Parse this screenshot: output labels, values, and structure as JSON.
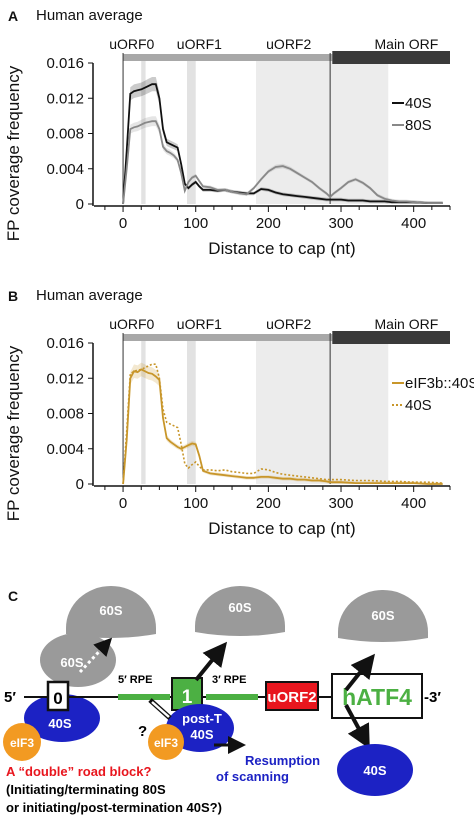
{
  "panel_a": {
    "letter": "A",
    "title": "Human average"
  },
  "panel_b": {
    "letter": "B",
    "title": "Human average"
  },
  "panel_c": {
    "letter": "C"
  },
  "chart_data": [
    {
      "type": "line",
      "title": "Human average",
      "xlabel": "Distance to cap (nt)",
      "ylabel": "FP coverage frequency",
      "xlim": [
        -40,
        450
      ],
      "ylim": [
        0,
        0.016
      ],
      "xticks": [
        "0",
        "100",
        "200",
        "300",
        "400"
      ],
      "xtick_values": [
        0,
        100,
        200,
        300,
        400
      ],
      "yticks": [
        "0",
        "0.004",
        "0.008",
        "0.012",
        "0.016"
      ],
      "ytick_values": [
        0,
        0.004,
        0.008,
        0.012,
        0.016
      ],
      "orf_labels": [
        "uORF0",
        "uORF1",
        "uORF2",
        "Main ORF"
      ],
      "regions": [
        {
          "name": "uORF0",
          "start": 25,
          "end": 31
        },
        {
          "name": "uORF1",
          "start": 88,
          "end": 100
        },
        {
          "name": "uORF2",
          "start": 183,
          "end": 285
        },
        {
          "name": "Main ORF",
          "start": 285,
          "end": 365
        }
      ],
      "orf_bar_start": 0,
      "orf_bar_mid": 288,
      "orf_bar_end": 450,
      "vlines": [
        0,
        285
      ],
      "series": [
        {
          "name": "40S",
          "color": "#111111",
          "style": "solid",
          "x": [
            0,
            5,
            10,
            15,
            20,
            25,
            30,
            35,
            40,
            45,
            50,
            55,
            60,
            65,
            70,
            75,
            80,
            85,
            90,
            95,
            100,
            105,
            110,
            120,
            130,
            140,
            150,
            160,
            170,
            180,
            190,
            200,
            210,
            220,
            230,
            240,
            250,
            260,
            270,
            280,
            285,
            290,
            300,
            310,
            320,
            330,
            340,
            350,
            360,
            370,
            380,
            390,
            400,
            420,
            440
          ],
          "y": [
            0,
            0.006,
            0.0125,
            0.0128,
            0.0129,
            0.013,
            0.0132,
            0.0134,
            0.0136,
            0.0136,
            0.012,
            0.0085,
            0.007,
            0.0068,
            0.0066,
            0.0064,
            0.0045,
            0.0023,
            0.0018,
            0.0022,
            0.0025,
            0.002,
            0.0016,
            0.0016,
            0.0015,
            0.0016,
            0.0014,
            0.0013,
            0.0012,
            0.0012,
            0.0017,
            0.0016,
            0.0013,
            0.0011,
            0.001,
            0.0009,
            0.0008,
            0.0007,
            0.0006,
            0.0005,
            0.0005,
            0.0005,
            0.0005,
            0.0004,
            0.0004,
            0.0004,
            0.0003,
            0.0003,
            0.0003,
            0.0002,
            0.0002,
            0.0002,
            0.0002,
            0.0001,
            0.0001
          ]
        },
        {
          "name": "80S",
          "color": "#888888",
          "style": "solid",
          "x": [
            0,
            5,
            10,
            15,
            20,
            25,
            30,
            35,
            40,
            45,
            50,
            55,
            60,
            65,
            70,
            75,
            80,
            85,
            90,
            95,
            100,
            105,
            110,
            120,
            130,
            140,
            150,
            160,
            170,
            180,
            190,
            200,
            210,
            220,
            230,
            240,
            250,
            260,
            270,
            280,
            285,
            290,
            300,
            310,
            320,
            330,
            340,
            350,
            360,
            370,
            380,
            390,
            400,
            420,
            440
          ],
          "y": [
            0,
            0.004,
            0.0085,
            0.0087,
            0.0088,
            0.009,
            0.0092,
            0.0093,
            0.0094,
            0.0094,
            0.0085,
            0.0065,
            0.006,
            0.0058,
            0.0055,
            0.005,
            0.0035,
            0.0015,
            0.0025,
            0.003,
            0.0032,
            0.0026,
            0.002,
            0.0019,
            0.0016,
            0.0016,
            0.0014,
            0.0012,
            0.0011,
            0.0018,
            0.0028,
            0.0037,
            0.0042,
            0.0043,
            0.004,
            0.0035,
            0.003,
            0.0025,
            0.0018,
            0.0012,
            0.0008,
            0.0012,
            0.0018,
            0.0025,
            0.0028,
            0.0024,
            0.0018,
            0.001,
            0.0006,
            0.0004,
            0.0003,
            0.0003,
            0.0002,
            0.0001,
            0.0001
          ]
        }
      ],
      "legend_position": "right"
    },
    {
      "type": "line",
      "title": "Human average",
      "xlabel": "Distance to cap (nt)",
      "ylabel": "FP coverage frequency",
      "xlim": [
        -40,
        450
      ],
      "ylim": [
        0,
        0.016
      ],
      "xticks": [
        "0",
        "100",
        "200",
        "300",
        "400"
      ],
      "xtick_values": [
        0,
        100,
        200,
        300,
        400
      ],
      "yticks": [
        "0",
        "0.004",
        "0.008",
        "0.012",
        "0.016"
      ],
      "ytick_values": [
        0,
        0.004,
        0.008,
        0.012,
        0.016
      ],
      "orf_labels": [
        "uORF0",
        "uORF1",
        "uORF2",
        "Main ORF"
      ],
      "regions": [
        {
          "name": "uORF0",
          "start": 25,
          "end": 31
        },
        {
          "name": "uORF1",
          "start": 88,
          "end": 100
        },
        {
          "name": "uORF2",
          "start": 183,
          "end": 285
        },
        {
          "name": "Main ORF",
          "start": 285,
          "end": 365
        }
      ],
      "orf_bar_start": 0,
      "orf_bar_mid": 288,
      "orf_bar_end": 450,
      "vlines": [
        0,
        285
      ],
      "series": [
        {
          "name": "eIF3b::40S",
          "color": "#c8962a",
          "style": "solid",
          "x": [
            0,
            5,
            10,
            15,
            20,
            25,
            30,
            35,
            40,
            45,
            50,
            55,
            60,
            65,
            70,
            75,
            80,
            85,
            90,
            95,
            100,
            105,
            110,
            120,
            130,
            140,
            150,
            160,
            170,
            180,
            190,
            200,
            210,
            220,
            230,
            240,
            250,
            260,
            270,
            280,
            285,
            290,
            300,
            320,
            340,
            360,
            380,
            400,
            420,
            440
          ],
          "y": [
            0,
            0.005,
            0.012,
            0.0128,
            0.0127,
            0.013,
            0.0128,
            0.0126,
            0.0125,
            0.0122,
            0.0118,
            0.0075,
            0.0052,
            0.0048,
            0.0045,
            0.0042,
            0.004,
            0.0042,
            0.0044,
            0.0046,
            0.0045,
            0.0032,
            0.0015,
            0.0012,
            0.0011,
            0.001,
            0.0009,
            0.0008,
            0.0007,
            0.0007,
            0.0008,
            0.0008,
            0.0007,
            0.0006,
            0.0006,
            0.0005,
            0.0005,
            0.0004,
            0.0004,
            0.0003,
            0.0002,
            0.0002,
            0.0002,
            0.0001,
            0.0001,
            0.0001,
            0.0001,
            0.0001,
            0,
            0
          ]
        },
        {
          "name": "40S",
          "color": "#c8962a",
          "style": "dotted",
          "x": [
            0,
            5,
            10,
            15,
            20,
            25,
            30,
            35,
            40,
            45,
            50,
            55,
            60,
            65,
            70,
            75,
            80,
            85,
            90,
            95,
            100,
            105,
            110,
            120,
            130,
            140,
            150,
            160,
            170,
            180,
            190,
            200,
            210,
            220,
            230,
            240,
            250,
            260,
            270,
            280,
            285,
            290,
            300,
            320,
            340,
            360,
            380,
            400,
            420,
            440
          ],
          "y": [
            0,
            0.006,
            0.0125,
            0.0128,
            0.0129,
            0.013,
            0.0132,
            0.0134,
            0.0136,
            0.0136,
            0.012,
            0.0085,
            0.007,
            0.0068,
            0.0066,
            0.0064,
            0.0045,
            0.0023,
            0.0018,
            0.0022,
            0.0025,
            0.002,
            0.0016,
            0.0016,
            0.0015,
            0.0016,
            0.0014,
            0.0013,
            0.0012,
            0.0012,
            0.0017,
            0.0016,
            0.0013,
            0.0011,
            0.001,
            0.0009,
            0.0008,
            0.0007,
            0.0006,
            0.0005,
            0.0005,
            0.0005,
            0.0005,
            0.0004,
            0.0004,
            0.0003,
            0.0003,
            0.0002,
            0.0002,
            0.0001
          ]
        }
      ],
      "legend_position": "right"
    }
  ],
  "diagram": {
    "labels": {
      "five_prime": "5′",
      "three_prime": "-3′",
      "s60_a": "60S",
      "s60_b": "60S",
      "s60_c": "60S",
      "s60_d": "60S",
      "s40_a": "40S",
      "s40_b": "40S",
      "post_t": "post-T",
      "post_t_40s": "40S",
      "eif3_a": "eIF3",
      "eif3_b": "eIF3",
      "box_0": "0",
      "box_1": "1",
      "uorf2": "uORF2",
      "hatf4": "hATF4",
      "rpe5": "5′ RPE",
      "rpe3": "3′ RPE",
      "question": "?",
      "resumption_1": "Resumption",
      "resumption_2": "of scanning",
      "roadblock": "A “double” road block?",
      "caption_1": "(Initiating/terminating 80S",
      "caption_2": "or initiating/post-termination 40S?)"
    },
    "colors": {
      "grey_subunit": "#9a9a9a",
      "blue_subunit": "#1c22c4",
      "eif3": "#f29a22",
      "green_box": "#4cb043",
      "red_box": "#e8161e",
      "hatf4_text": "#4cb043",
      "roadblock_text": "#e8161e",
      "resumption_text": "#1c22c4"
    }
  }
}
